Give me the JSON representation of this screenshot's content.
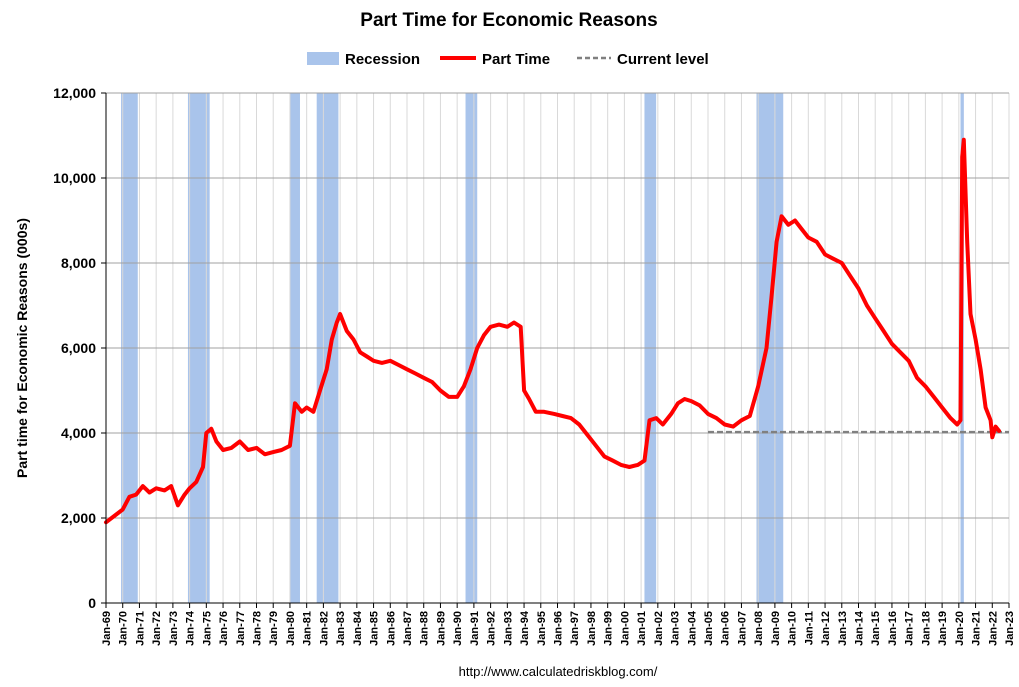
{
  "chart_data": {
    "type": "line",
    "title": "Part Time for Economic Reasons",
    "ylabel": "Part time for Economic Reasons (000s)",
    "source": "http://www.calculatedriskblog.com/",
    "ylim": [
      0,
      12000
    ],
    "yticks": [
      0,
      2000,
      4000,
      6000,
      8000,
      10000,
      12000
    ],
    "ytick_labels": [
      "0",
      "2,000",
      "4,000",
      "6,000",
      "8,000",
      "10,000",
      "12,000"
    ],
    "xlim": [
      1969.0,
      2023.0
    ],
    "xtick_labels": [
      "Jan-69",
      "Jan-70",
      "Jan-71",
      "Jan-72",
      "Jan-73",
      "Jan-74",
      "Jan-75",
      "Jan-76",
      "Jan-77",
      "Jan-78",
      "Jan-79",
      "Jan-80",
      "Jan-81",
      "Jan-82",
      "Jan-83",
      "Jan-84",
      "Jan-85",
      "Jan-86",
      "Jan-87",
      "Jan-88",
      "Jan-89",
      "Jan-90",
      "Jan-91",
      "Jan-92",
      "Jan-93",
      "Jan-94",
      "Jan-95",
      "Jan-96",
      "Jan-97",
      "Jan-98",
      "Jan-99",
      "Jan-00",
      "Jan-01",
      "Jan-02",
      "Jan-03",
      "Jan-04",
      "Jan-05",
      "Jan-06",
      "Jan-07",
      "Jan-08",
      "Jan-09",
      "Jan-10",
      "Jan-11",
      "Jan-12",
      "Jan-13",
      "Jan-14",
      "Jan-15",
      "Jan-16",
      "Jan-17",
      "Jan-18",
      "Jan-19",
      "Jan-20",
      "Jan-21",
      "Jan-22",
      "Jan-23"
    ],
    "grid": true,
    "legend": {
      "placement": "top-center",
      "entries": [
        {
          "label": "Recession",
          "style": "bar"
        },
        {
          "label": "Part Time",
          "style": "line"
        },
        {
          "label": "Current level",
          "style": "dashed"
        }
      ]
    },
    "recessions": [
      [
        1969.9,
        1970.9
      ],
      [
        1973.9,
        1975.2
      ],
      [
        1980.0,
        1980.6
      ],
      [
        1981.6,
        1982.9
      ],
      [
        1990.5,
        1991.2
      ],
      [
        2001.2,
        2001.9
      ],
      [
        2007.9,
        2009.5
      ],
      [
        2020.1,
        2020.3
      ]
    ],
    "current_level": {
      "value": 4020,
      "x_start": 2005.0,
      "x_end": 2023.0
    },
    "series": [
      {
        "name": "Part Time",
        "color": "#ff0000",
        "points": [
          [
            1969.0,
            1900
          ],
          [
            1969.5,
            2050
          ],
          [
            1970.0,
            2200
          ],
          [
            1970.4,
            2500
          ],
          [
            1970.8,
            2550
          ],
          [
            1971.2,
            2750
          ],
          [
            1971.6,
            2600
          ],
          [
            1972.0,
            2700
          ],
          [
            1972.5,
            2650
          ],
          [
            1972.9,
            2750
          ],
          [
            1973.3,
            2300
          ],
          [
            1973.7,
            2550
          ],
          [
            1974.0,
            2700
          ],
          [
            1974.4,
            2850
          ],
          [
            1974.8,
            3200
          ],
          [
            1975.0,
            4000
          ],
          [
            1975.3,
            4100
          ],
          [
            1975.6,
            3800
          ],
          [
            1976.0,
            3600
          ],
          [
            1976.5,
            3650
          ],
          [
            1977.0,
            3800
          ],
          [
            1977.5,
            3600
          ],
          [
            1978.0,
            3650
          ],
          [
            1978.5,
            3500
          ],
          [
            1979.0,
            3550
          ],
          [
            1979.5,
            3600
          ],
          [
            1980.0,
            3700
          ],
          [
            1980.3,
            4700
          ],
          [
            1980.7,
            4500
          ],
          [
            1981.0,
            4600
          ],
          [
            1981.4,
            4500
          ],
          [
            1981.8,
            5000
          ],
          [
            1982.2,
            5500
          ],
          [
            1982.5,
            6200
          ],
          [
            1982.8,
            6600
          ],
          [
            1983.0,
            6800
          ],
          [
            1983.4,
            6400
          ],
          [
            1983.8,
            6200
          ],
          [
            1984.2,
            5900
          ],
          [
            1984.6,
            5800
          ],
          [
            1985.0,
            5700
          ],
          [
            1985.5,
            5650
          ],
          [
            1986.0,
            5700
          ],
          [
            1986.5,
            5600
          ],
          [
            1987.0,
            5500
          ],
          [
            1987.5,
            5400
          ],
          [
            1988.0,
            5300
          ],
          [
            1988.5,
            5200
          ],
          [
            1989.0,
            5000
          ],
          [
            1989.5,
            4850
          ],
          [
            1990.0,
            4850
          ],
          [
            1990.4,
            5100
          ],
          [
            1990.8,
            5500
          ],
          [
            1991.2,
            6000
          ],
          [
            1991.6,
            6300
          ],
          [
            1992.0,
            6500
          ],
          [
            1992.5,
            6550
          ],
          [
            1993.0,
            6500
          ],
          [
            1993.4,
            6600
          ],
          [
            1993.8,
            6500
          ],
          [
            1994.0,
            5000
          ],
          [
            1994.3,
            4800
          ],
          [
            1994.7,
            4500
          ],
          [
            1995.2,
            4500
          ],
          [
            1995.8,
            4450
          ],
          [
            1996.3,
            4400
          ],
          [
            1996.8,
            4350
          ],
          [
            1997.3,
            4200
          ],
          [
            1997.8,
            3950
          ],
          [
            1998.3,
            3700
          ],
          [
            1998.8,
            3450
          ],
          [
            1999.3,
            3350
          ],
          [
            1999.8,
            3250
          ],
          [
            2000.3,
            3200
          ],
          [
            2000.8,
            3250
          ],
          [
            2001.2,
            3350
          ],
          [
            2001.5,
            4300
          ],
          [
            2001.9,
            4350
          ],
          [
            2002.3,
            4200
          ],
          [
            2002.8,
            4450
          ],
          [
            2003.2,
            4700
          ],
          [
            2003.6,
            4800
          ],
          [
            2004.0,
            4750
          ],
          [
            2004.5,
            4650
          ],
          [
            2005.0,
            4450
          ],
          [
            2005.5,
            4350
          ],
          [
            2006.0,
            4200
          ],
          [
            2006.5,
            4150
          ],
          [
            2007.0,
            4300
          ],
          [
            2007.5,
            4400
          ],
          [
            2008.0,
            5100
          ],
          [
            2008.5,
            6000
          ],
          [
            2008.8,
            7200
          ],
          [
            2009.1,
            8500
          ],
          [
            2009.4,
            9100
          ],
          [
            2009.8,
            8900
          ],
          [
            2010.2,
            9000
          ],
          [
            2010.6,
            8800
          ],
          [
            2011.0,
            8600
          ],
          [
            2011.5,
            8500
          ],
          [
            2012.0,
            8200
          ],
          [
            2012.5,
            8100
          ],
          [
            2013.0,
            8000
          ],
          [
            2013.5,
            7700
          ],
          [
            2014.0,
            7400
          ],
          [
            2014.5,
            7000
          ],
          [
            2015.0,
            6700
          ],
          [
            2015.5,
            6400
          ],
          [
            2016.0,
            6100
          ],
          [
            2016.5,
            5900
          ],
          [
            2017.0,
            5700
          ],
          [
            2017.5,
            5300
          ],
          [
            2018.0,
            5100
          ],
          [
            2018.5,
            4850
          ],
          [
            2019.0,
            4600
          ],
          [
            2019.5,
            4350
          ],
          [
            2019.9,
            4200
          ],
          [
            2020.1,
            4300
          ],
          [
            2020.2,
            10500
          ],
          [
            2020.3,
            10900
          ],
          [
            2020.5,
            8500
          ],
          [
            2020.7,
            6800
          ],
          [
            2021.0,
            6200
          ],
          [
            2021.3,
            5500
          ],
          [
            2021.6,
            4600
          ],
          [
            2021.9,
            4300
          ],
          [
            2022.0,
            3900
          ],
          [
            2022.2,
            4150
          ],
          [
            2022.4,
            4050
          ]
        ]
      }
    ]
  }
}
